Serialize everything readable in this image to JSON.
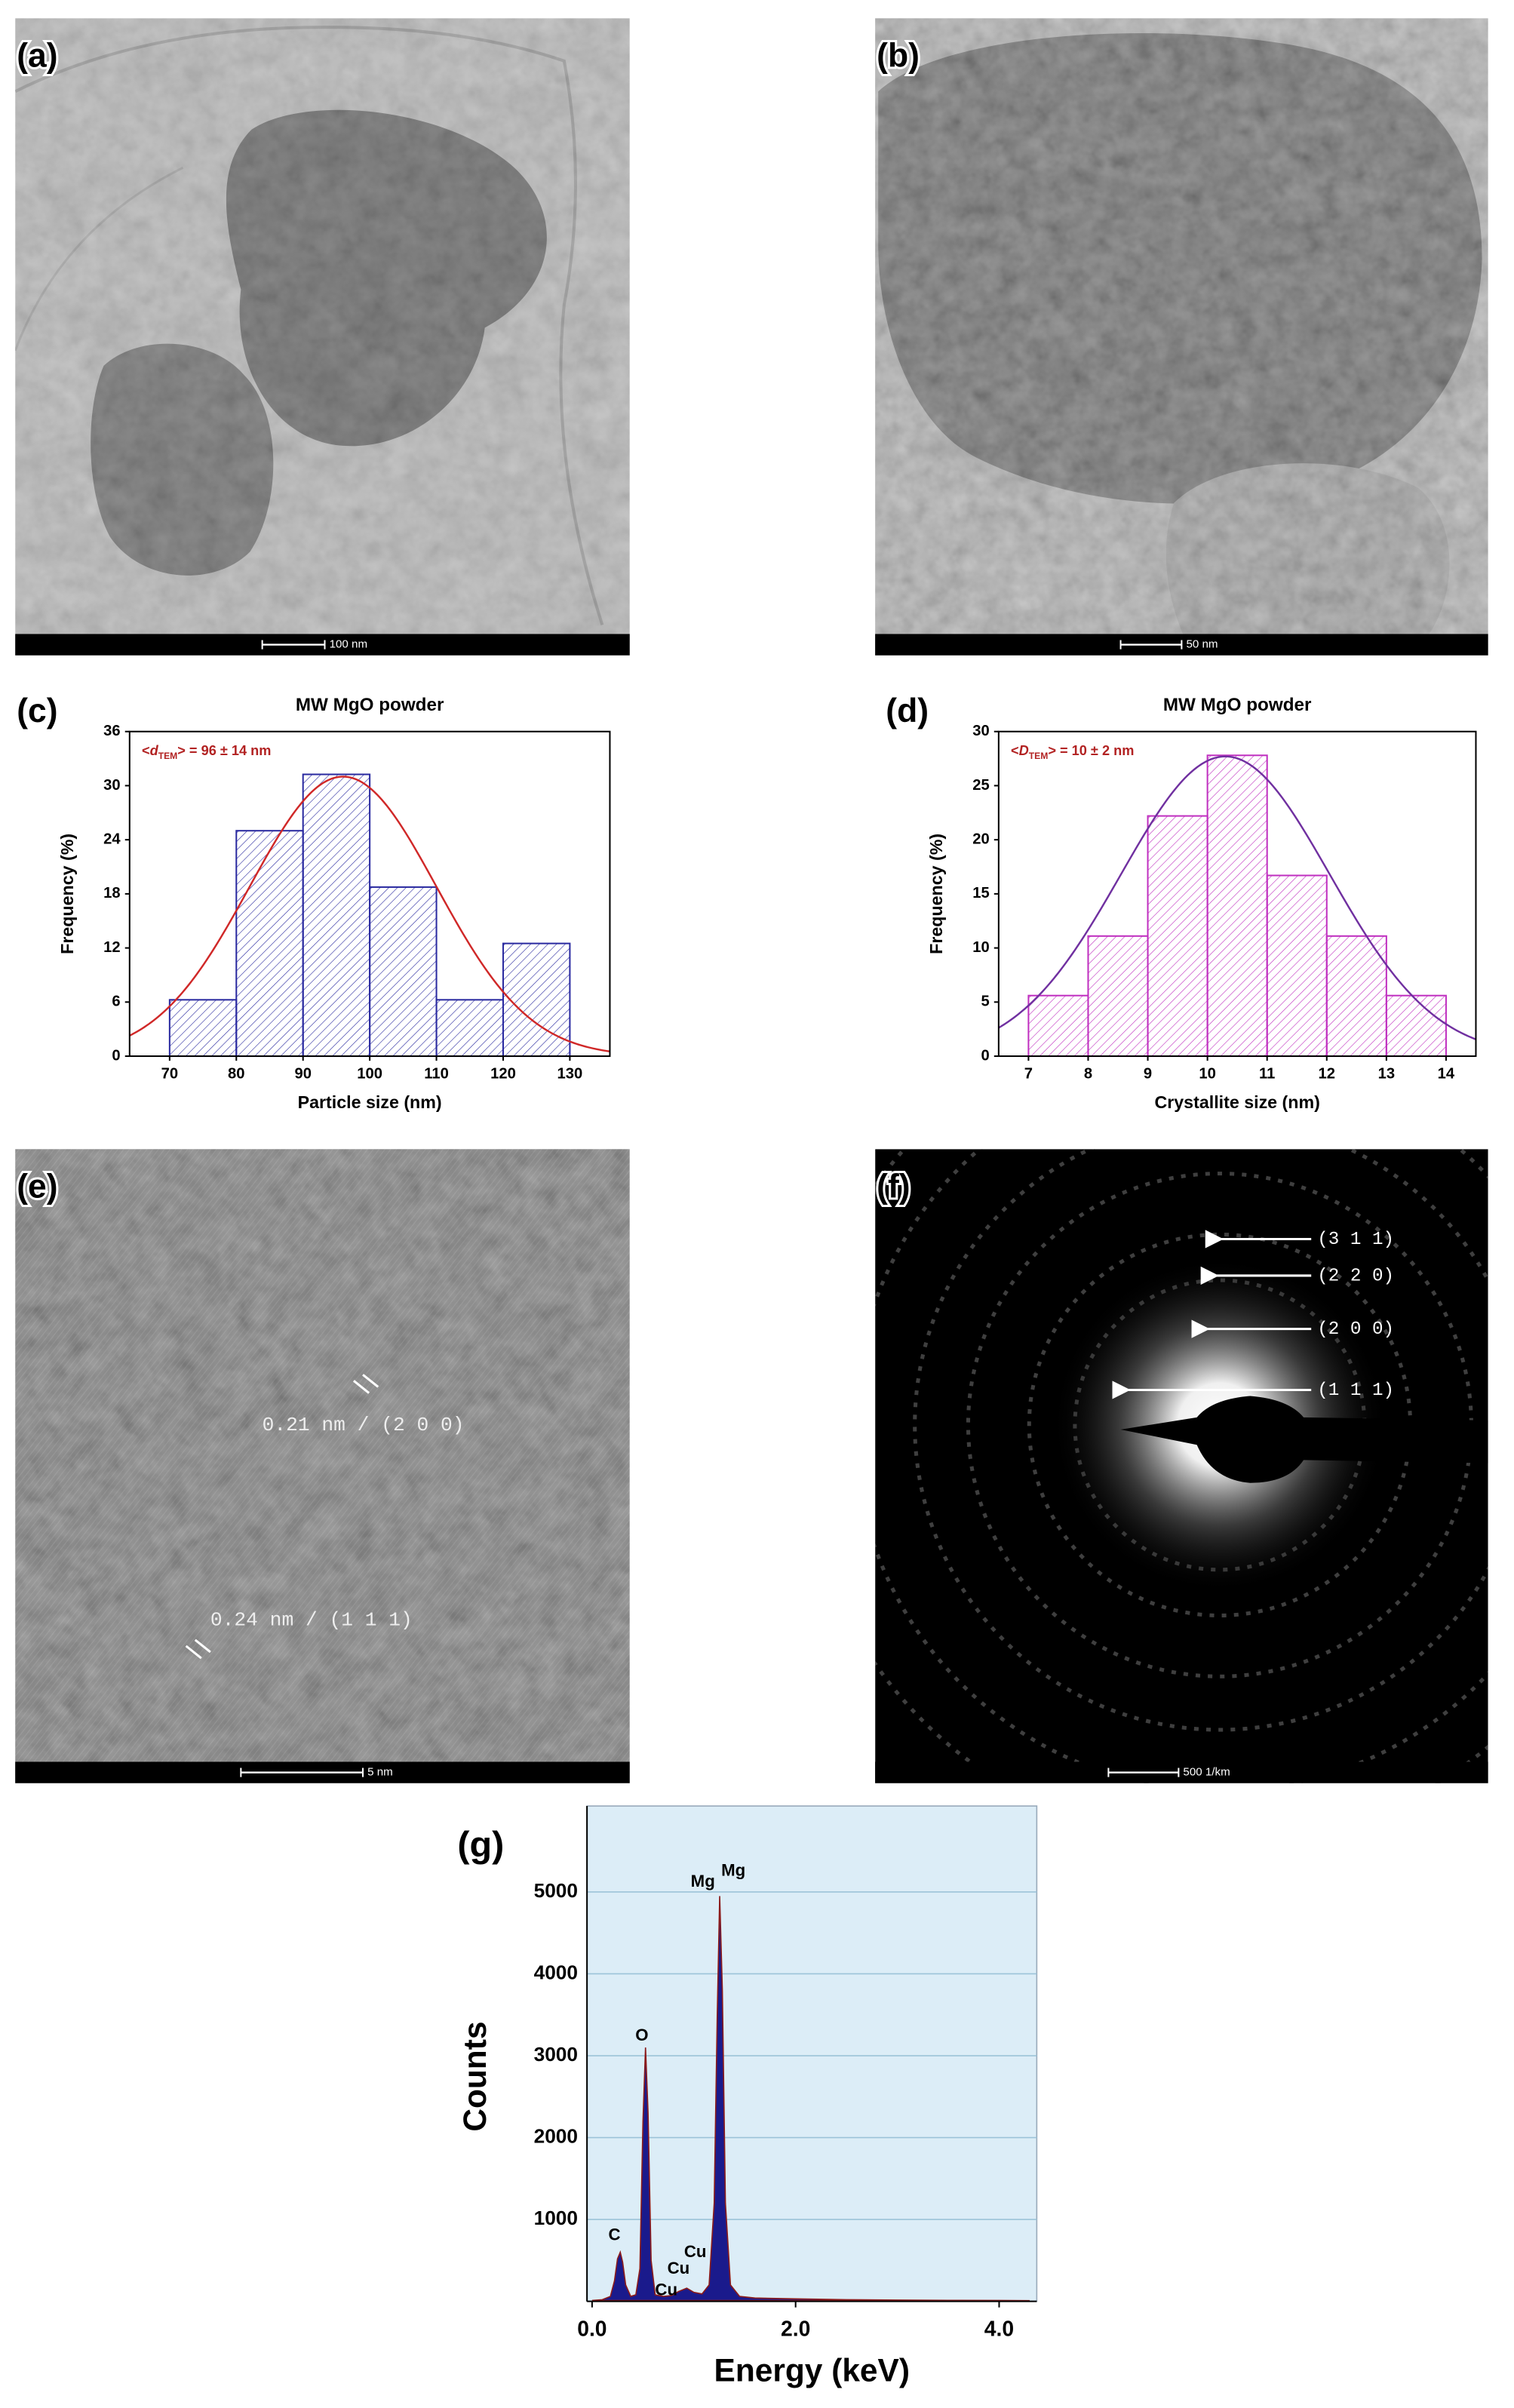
{
  "panels": {
    "a": {
      "label": "(a)",
      "scale_bar": "100 nm"
    },
    "b": {
      "label": "(b)",
      "scale_bar": "50 nm"
    },
    "e": {
      "label": "(e)",
      "scale_bar": "5 nm",
      "annotations": [
        "0.21 nm / (2 0 0)",
        "0.24 nm / (1 1 1)"
      ]
    },
    "f": {
      "label": "(f)",
      "scale_bar": "500 1/km",
      "rings": [
        "(3 1 1)",
        "(2 2 0)",
        "(2 0 0)",
        "(1 1 1)"
      ]
    }
  },
  "chart_data": [
    {
      "type": "histogram",
      "panel_label": "(c)",
      "title": "MW MgO powder",
      "annotation": {
        "prefix": "<",
        "symbol": "d",
        "subscript": "TEM",
        "suffix": "> = 96 ± 14 nm",
        "color": "#b22222"
      },
      "xlabel": "Particle size (nm)",
      "ylabel": "Frequency (%)",
      "bins": [
        70,
        80,
        90,
        100,
        110,
        120,
        130
      ],
      "values": [
        6.25,
        25,
        31.25,
        18.75,
        6.25,
        12.5
      ],
      "color": "#2a2aa0",
      "fit": {
        "center": 96,
        "width": 14,
        "peak": 31,
        "color": "#d02828"
      },
      "xlim": [
        64,
        136
      ],
      "ylim": [
        0,
        36
      ],
      "xticks": [
        70,
        80,
        90,
        100,
        110,
        120,
        130
      ],
      "yticks": [
        0,
        6,
        12,
        18,
        24,
        30,
        36
      ]
    },
    {
      "type": "histogram",
      "panel_label": "(d)",
      "title": "MW MgO powder",
      "annotation": {
        "prefix": "<",
        "symbol": "D",
        "subscript": "TEM",
        "suffix": "> = 10 ± 2 nm",
        "color": "#b22222"
      },
      "xlabel": "Crystallite size (nm)",
      "ylabel": "Frequency (%)",
      "bins": [
        7,
        8,
        9,
        10,
        11,
        12,
        13,
        14
      ],
      "values": [
        5.6,
        11.1,
        22.2,
        27.8,
        16.7,
        11.1,
        5.6
      ],
      "color": "#c030c0",
      "fit": {
        "center": 10.3,
        "width": 1.75,
        "peak": 27.7,
        "color": "#7030a0"
      },
      "xlim": [
        6.5,
        14.5
      ],
      "ylim": [
        0,
        30
      ],
      "xticks": [
        7,
        8,
        9,
        10,
        11,
        12,
        13,
        14
      ],
      "yticks": [
        0,
        5,
        10,
        15,
        20,
        25,
        30
      ]
    },
    {
      "type": "area",
      "panel_label": "(g)",
      "xlabel": "Energy (keV)",
      "ylabel": "Counts",
      "x": [
        0.0,
        0.1,
        0.18,
        0.22,
        0.25,
        0.277,
        0.3,
        0.33,
        0.38,
        0.43,
        0.47,
        0.5,
        0.525,
        0.55,
        0.58,
        0.62,
        0.7,
        0.78,
        0.85,
        0.93,
        1.0,
        1.08,
        1.15,
        1.2,
        1.23,
        1.254,
        1.28,
        1.31,
        1.36,
        1.45,
        1.6,
        2.0,
        2.5,
        3.0,
        3.5,
        4.0,
        4.3
      ],
      "values": [
        10,
        20,
        60,
        250,
        520,
        600,
        480,
        200,
        60,
        80,
        400,
        2200,
        3100,
        2300,
        500,
        80,
        60,
        70,
        120,
        160,
        110,
        90,
        200,
        1200,
        3500,
        4950,
        3800,
        1200,
        200,
        60,
        40,
        30,
        20,
        15,
        12,
        10,
        8
      ],
      "color": "#1a1a8c",
      "line_color": "#8b1a1a",
      "background": "#dcedf7",
      "grid": true,
      "peak_labels": [
        "C",
        "O",
        "Cu",
        "Cu",
        "Cu",
        "Mg",
        "Mg"
      ],
      "xlim": [
        -0.05,
        4.37
      ],
      "ylim": [
        0,
        6050
      ],
      "xticks": [
        {
          "value": 0,
          "label": "0.0"
        },
        {
          "value": 2,
          "label": "2.0"
        },
        {
          "value": 4,
          "label": "4.0"
        }
      ],
      "yticks": [
        1000,
        2000,
        3000,
        4000,
        5000
      ]
    }
  ]
}
